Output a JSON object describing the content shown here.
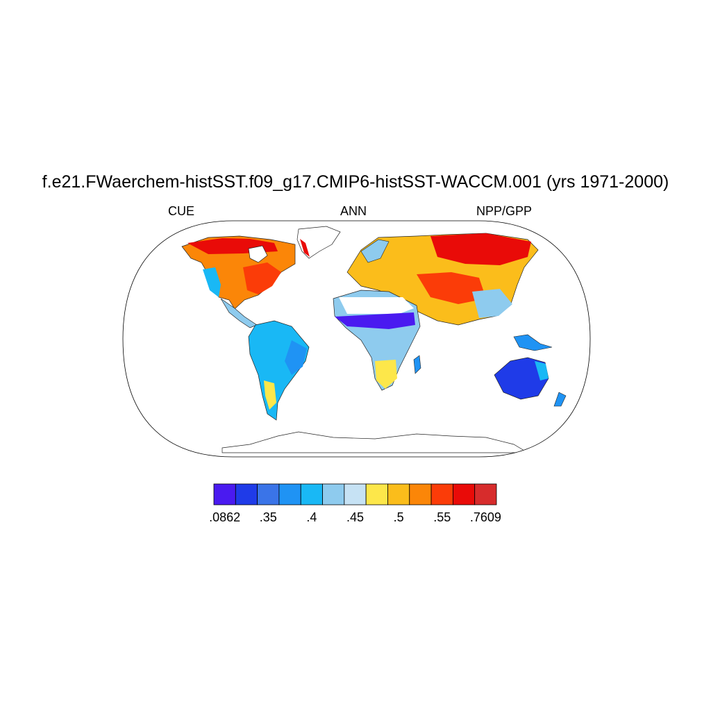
{
  "title": "f.e21.FWaerchem-histSST.f09_g17.CMIP6-histSST-WACCM.001 (yrs 1971-2000)",
  "left_label": "CUE",
  "center_label": "ANN",
  "right_label": "NPP/GPP",
  "colorbar": {
    "colors": [
      "#4a1af0",
      "#1f3be8",
      "#3a74e8",
      "#1f93f4",
      "#19b8f5",
      "#8ecbee",
      "#c6e2f4",
      "#fde74a",
      "#fbbd1b",
      "#fb8608",
      "#fb3c08",
      "#e90b08",
      "#d72c2c"
    ],
    "tick_labels": [
      ".0862",
      "",
      ".35",
      "",
      ".4",
      "",
      ".45",
      "",
      ".5",
      "",
      ".55",
      "",
      ".7609"
    ]
  }
}
